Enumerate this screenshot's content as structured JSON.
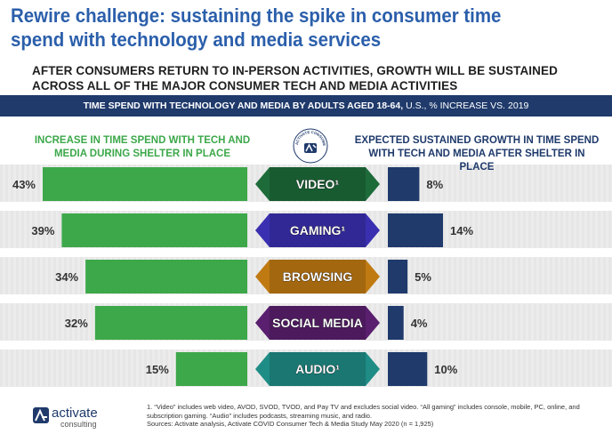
{
  "header": {
    "title": "Rewire challenge: sustaining the spike in consumer time spend with technology and media services",
    "subtitle": "AFTER CONSUMERS RETURN TO IN-PERSON ACTIVITIES, GROWTH WILL BE SUSTAINED ACROSS ALL OF THE MAJOR CONSUMER TECH AND MEDIA ACTIVITIES",
    "banner_bold": "TIME SPEND WITH TECHNOLOGY AND MEDIA BY ADULTS AGED 18-64,",
    "banner_rest": " U.S., % INCREASE VS. 2019"
  },
  "badge": {
    "text": "ACTIVATE CONSUMER INSIGHT"
  },
  "footer": {
    "note1": "1.  “Video” includes web video, AVOD, SVOD, TVOD, and Pay TV and excludes social video. “All gaming” includes console, mobile, PC, online, and subscription gaming. “Audio” includes podcasts, streaming music, and radio.",
    "sources": "Sources: Activate analysis, Activate COVID Consumer Tech & Media Study May 2020 (n = 1,925)",
    "logo_name": "activate",
    "logo_sub": "consulting"
  },
  "colors": {
    "left_bar": "#3ca84a",
    "right_bar": "#1f3a6b",
    "title": "#2b5fab",
    "banner": "#1f3a6b"
  },
  "chart_data": {
    "type": "bar",
    "left_title": "INCREASE IN TIME SPEND WITH TECH AND MEDIA DURING SHELTER IN PLACE",
    "right_title": "EXPECTED SUSTAINED GROWTH IN TIME SPEND WITH TECH AND MEDIA AFTER SHELTER IN PLACE",
    "categories": [
      "VIDEO¹",
      "GAMING¹",
      "BROWSING",
      "SOCIAL MEDIA",
      "AUDIO¹"
    ],
    "label_colors": [
      "#1e6b3a",
      "#3a2fb0",
      "#c07a12",
      "#5a1f6e",
      "#1f8c86"
    ],
    "series": [
      {
        "name": "INCREASE IN TIME SPEND WITH TECH AND MEDIA DURING SHELTER IN PLACE",
        "values": [
          43,
          39,
          34,
          32,
          15
        ],
        "labels": [
          "43%",
          "39%",
          "34%",
          "32%",
          "15%"
        ]
      },
      {
        "name": "EXPECTED SUSTAINED GROWTH IN TIME SPEND WITH TECH AND MEDIA AFTER SHELTER IN PLACE",
        "values": [
          8,
          14,
          5,
          4,
          10
        ],
        "labels": [
          "8%",
          "14%",
          "5%",
          "4%",
          "10%"
        ]
      }
    ]
  }
}
